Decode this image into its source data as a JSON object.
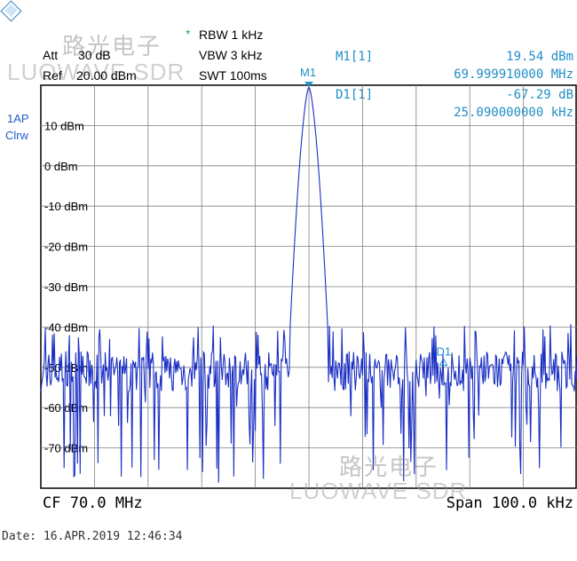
{
  "settings": {
    "att_label": "Att",
    "att_value": "30 dB",
    "ref_label": "Ref",
    "ref_value": "20.00 dBm",
    "rbw_star": "*",
    "rbw": "RBW 1 kHz",
    "vbw": "VBW 3 kHz",
    "swt": "SWT 100ms"
  },
  "side_labels": {
    "trace_mode_1": "1AP",
    "trace_mode_2": "Clrw"
  },
  "marker_m1": {
    "tag": "M1",
    "label": "M1[1]",
    "level": "19.54 dBm",
    "freq": "69.999910000 MHz"
  },
  "marker_d1": {
    "tag": "D1",
    "label": "D1[1]",
    "level": "-67.29 dB",
    "freq": "25.090000000 kHz"
  },
  "watermark": {
    "cn": "路光电子",
    "en": "LUOWAVE SDR"
  },
  "footer": {
    "center": "CF 70.0 MHz",
    "span": "Span 100.0 kHz"
  },
  "date_line": "Date: 16.APR.2019  12:46:34",
  "colors": {
    "trace": "#1a2fc4",
    "marker_text": "#1f8fc6",
    "grid": "#808080",
    "accent": "#22b24c"
  },
  "chart_data": {
    "type": "line",
    "y_unit": "dBm",
    "ylim": [
      -80,
      20
    ],
    "xlim": [
      69950,
      70050
    ],
    "x_unit": "kHz",
    "y_tick_labels": [
      "10 dBm",
      "0 dBm",
      "-10 dBm",
      "-20 dBm",
      "-30 dBm",
      "-40 dBm",
      "-50 dBm",
      "-60 dBm",
      "-70 dBm"
    ],
    "y_ticks": [
      10,
      0,
      -10,
      -20,
      -30,
      -40,
      -50,
      -60,
      -70
    ],
    "grid": true,
    "peak": {
      "x": 70000,
      "y": 19.54
    },
    "delta_marker": {
      "x": 70025.09,
      "y": -47.75
    }
  }
}
